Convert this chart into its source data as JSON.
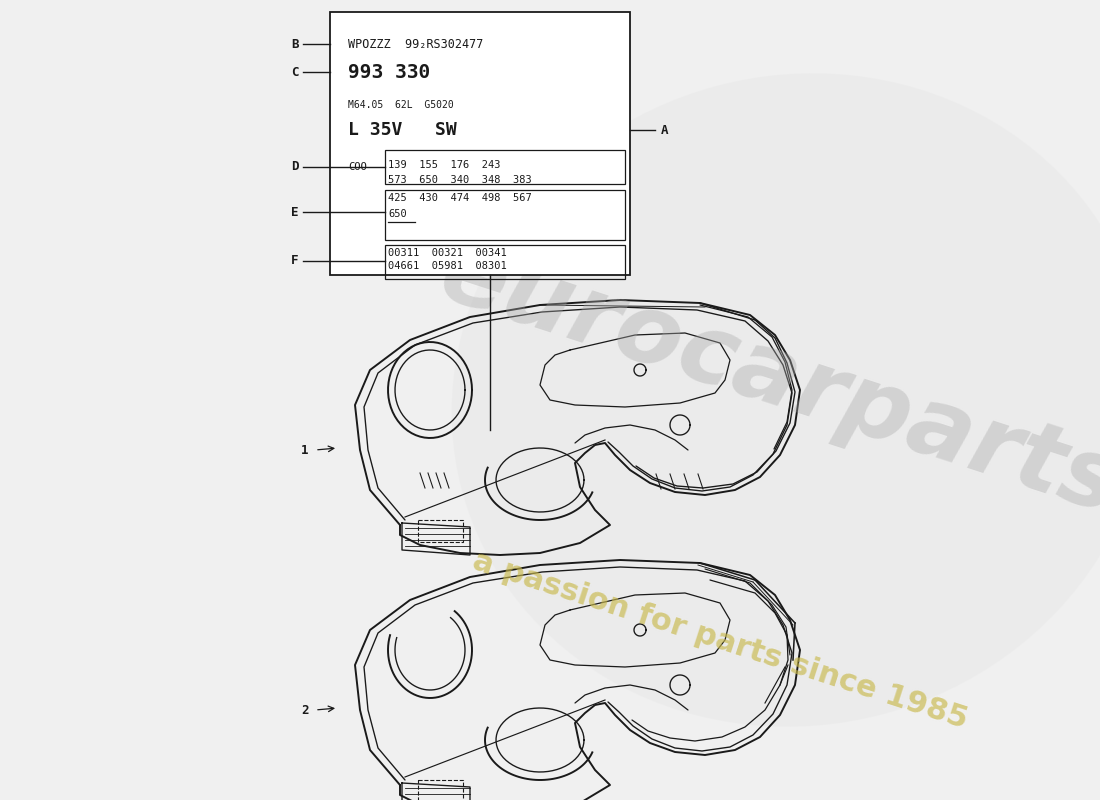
{
  "bg_color": "#f0f0f0",
  "watermark_line1": "eurocarparts",
  "watermark_line2": "a passion for parts since 1985",
  "label_box": {
    "line_B": "WPOZZZ  99₂RS302477",
    "line_C": "993 330",
    "line_small": "M64.05  62L  G5020",
    "line_big": "L 35V   SW",
    "line_D_text": "COO 139  155  176  243",
    "line_D2": "573  650  340  348  383",
    "line_E_text": "425  430  474  498  567",
    "line_E2": "650",
    "line_F_text": "00311  00321  00341",
    "line_F2": "04661  05981  08301"
  },
  "part1_label": "1",
  "part2_label": "2",
  "line_color": "#1a1a1a",
  "text_color": "#1a1a1a"
}
